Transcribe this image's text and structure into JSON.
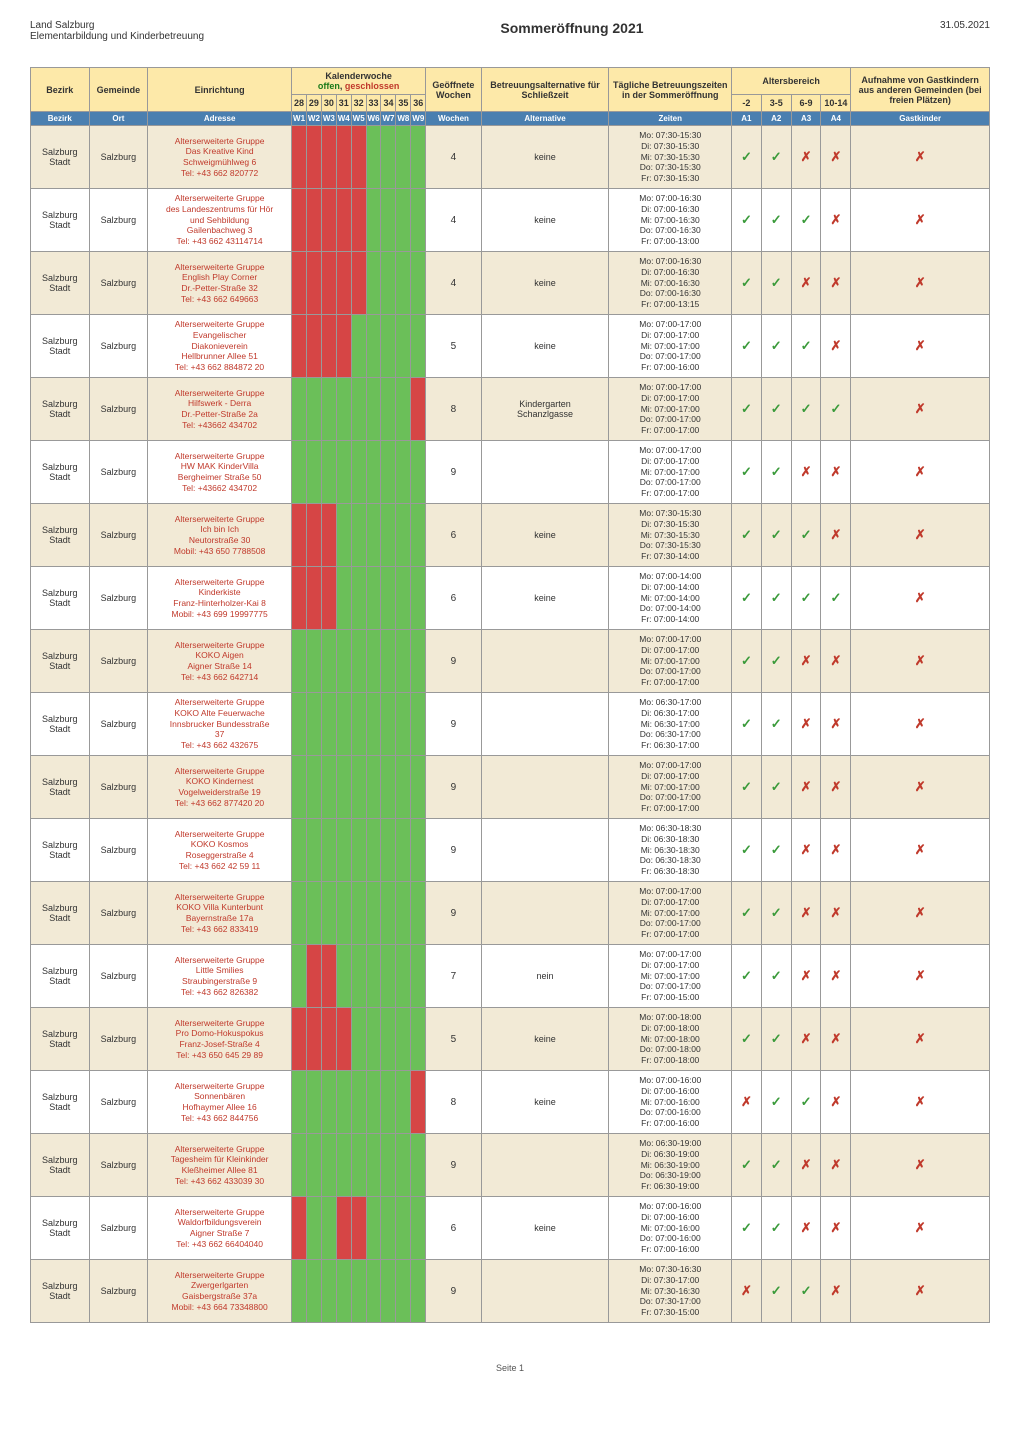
{
  "page": {
    "org_line1": "Land Salzburg",
    "org_line2": "Elementarbildung und Kinderbetreuung",
    "title": "Sommeröffnung 2021",
    "date": "31.05.2021",
    "footer": "Seite 1"
  },
  "colors": {
    "header_bg_top": "#fde9a9",
    "header_bg_sub": "#4a7fb0",
    "header_fg_sub": "#ffffff",
    "zebra_odd": "#f2ead6",
    "zebra_even": "#ffffff",
    "kw_open": "#6bbf59",
    "kw_closed": "#d64545",
    "check": "#3a9a3a",
    "cross": "#c0392b",
    "text_red": "#c0392b"
  },
  "header": {
    "bezirk": "Bezirk",
    "gemeinde": "Gemeinde",
    "einrichtung": "Einrichtung",
    "kalenderwoche": "Kalenderwoche",
    "kw_offen": "offen",
    "kw_sep": ", ",
    "kw_geschlossen": "geschlossen",
    "kw_nums": [
      "28",
      "29",
      "30",
      "31",
      "32",
      "33",
      "34",
      "35",
      "36"
    ],
    "kw_labels": [
      "W1",
      "W2",
      "W3",
      "W4",
      "W5",
      "W6",
      "W7",
      "W8",
      "W9"
    ],
    "geoeffnete_wochen": "Geöffnete Wochen",
    "wochen": "Wochen",
    "betreuungsalternative": "Betreuungsalternative für Schließzeit",
    "alternative": "Alternative",
    "taegliche": "Tägliche Betreuungszeiten in der Sommeröffnung",
    "zeiten": "Zeiten",
    "altersbereich": "Altersbereich",
    "ab_labels": [
      "-2",
      "3-5",
      "6-9",
      "10-14"
    ],
    "ab_codes": [
      "A1",
      "A2",
      "A3",
      "A4"
    ],
    "aufnahme": "Aufnahme von Gastkindern aus anderen Gemeinden (bei freien Plätzen)",
    "gastkinder": "Gastkinder",
    "ort": "Ort",
    "adresse": "Adresse"
  },
  "rows": [
    {
      "bezirk": "Salzburg Stadt",
      "gemeinde": "Salzburg",
      "adresse": "Alterserweiterte Gruppe\nDas Kreative Kind\nSchweigmühlweg 6\nTel: +43 662 820772",
      "kw": [
        0,
        0,
        0,
        0,
        0,
        1,
        1,
        1,
        1
      ],
      "wochen": "4",
      "alt": "keine",
      "zeiten": "Mo: 07:30-15:30\nDi: 07:30-15:30\nMi: 07:30-15:30\nDo: 07:30-15:30\nFr: 07:30-15:30",
      "ab": [
        "✓",
        "✓",
        "✗",
        "✗"
      ],
      "gast": "✗"
    },
    {
      "bezirk": "Salzburg Stadt",
      "gemeinde": "Salzburg",
      "adresse": "Alterserweiterte Gruppe\ndes Landeszentrums für Hör\nund Sehbildung\nGailenbachweg 3\nTel: +43 662 43114714",
      "kw": [
        0,
        0,
        0,
        0,
        0,
        1,
        1,
        1,
        1
      ],
      "wochen": "4",
      "alt": "keine",
      "zeiten": "Mo: 07:00-16:30\nDi: 07:00-16:30\nMi: 07:00-16:30\nDo: 07:00-16:30\nFr: 07:00-13:00",
      "ab": [
        "✓",
        "✓",
        "✓",
        "✗"
      ],
      "gast": "✗"
    },
    {
      "bezirk": "Salzburg Stadt",
      "gemeinde": "Salzburg",
      "adresse": "Alterserweiterte Gruppe\nEnglish Play Corner\nDr.-Petter-Straße 32\nTel: +43 662 649663",
      "kw": [
        0,
        0,
        0,
        0,
        0,
        1,
        1,
        1,
        1
      ],
      "wochen": "4",
      "alt": "keine",
      "zeiten": "Mo: 07:00-16:30\nDi: 07:00-16:30\nMi: 07:00-16:30\nDo: 07:00-16:30\nFr: 07:00-13:15",
      "ab": [
        "✓",
        "✓",
        "✗",
        "✗"
      ],
      "gast": "✗"
    },
    {
      "bezirk": "Salzburg Stadt",
      "gemeinde": "Salzburg",
      "adresse": "Alterserweiterte Gruppe\nEvangelischer\nDiakonieverein\nHellbrunner Allee 51\nTel: +43 662 884872 20",
      "kw": [
        0,
        0,
        0,
        0,
        1,
        1,
        1,
        1,
        1
      ],
      "wochen": "5",
      "alt": "keine",
      "zeiten": "Mo: 07:00-17:00\nDi: 07:00-17:00\nMi: 07:00-17:00\nDo: 07:00-17:00\nFr: 07:00-16:00",
      "ab": [
        "✓",
        "✓",
        "✓",
        "✗"
      ],
      "gast": "✗"
    },
    {
      "bezirk": "Salzburg Stadt",
      "gemeinde": "Salzburg",
      "adresse": "Alterserweiterte Gruppe\nHilfswerk - Derra\nDr.-Petter-Straße 2a\nTel: +43662 434702",
      "kw": [
        1,
        1,
        1,
        1,
        1,
        1,
        1,
        1,
        0
      ],
      "wochen": "8",
      "alt": "Kindergarten\nSchanzlgasse",
      "zeiten": "Mo: 07:00-17:00\nDi: 07:00-17:00\nMi: 07:00-17:00\nDo: 07:00-17:00\nFr: 07:00-17:00",
      "ab": [
        "✓",
        "✓",
        "✓",
        "✓"
      ],
      "gast": "✗"
    },
    {
      "bezirk": "Salzburg Stadt",
      "gemeinde": "Salzburg",
      "adresse": "Alterserweiterte Gruppe\nHW MAK KinderVilla\nBergheimer Straße 50\nTel: +43662 434702",
      "kw": [
        1,
        1,
        1,
        1,
        1,
        1,
        1,
        1,
        1
      ],
      "wochen": "9",
      "alt": "",
      "zeiten": "Mo: 07:00-17:00\nDi: 07:00-17:00\nMi: 07:00-17:00\nDo: 07:00-17:00\nFr: 07:00-17:00",
      "ab": [
        "✓",
        "✓",
        "✗",
        "✗"
      ],
      "gast": "✗"
    },
    {
      "bezirk": "Salzburg Stadt",
      "gemeinde": "Salzburg",
      "adresse": "Alterserweiterte Gruppe\nIch bin Ich\nNeutorstraße 30\nMobil: +43 650 7788508",
      "kw": [
        0,
        0,
        0,
        1,
        1,
        1,
        1,
        1,
        1
      ],
      "wochen": "6",
      "alt": "keine",
      "zeiten": "Mo: 07:30-15:30\nDi: 07:30-15:30\nMi: 07:30-15:30\nDo: 07:30-15:30\nFr: 07:30-14:00",
      "ab": [
        "✓",
        "✓",
        "✓",
        "✗"
      ],
      "gast": "✗"
    },
    {
      "bezirk": "Salzburg Stadt",
      "gemeinde": "Salzburg",
      "adresse": "Alterserweiterte Gruppe\nKinderkiste\nFranz-Hinterholzer-Kai 8\nMobil: +43 699 19997775",
      "kw": [
        0,
        0,
        0,
        1,
        1,
        1,
        1,
        1,
        1
      ],
      "wochen": "6",
      "alt": "keine",
      "zeiten": "Mo: 07:00-14:00\nDi: 07:00-14:00\nMi: 07:00-14:00\nDo: 07:00-14:00\nFr: 07:00-14:00",
      "ab": [
        "✓",
        "✓",
        "✓",
        "✓"
      ],
      "gast": "✗"
    },
    {
      "bezirk": "Salzburg Stadt",
      "gemeinde": "Salzburg",
      "adresse": "Alterserweiterte Gruppe\nKOKO Aigen\nAigner Straße 14\nTel: +43 662 642714",
      "kw": [
        1,
        1,
        1,
        1,
        1,
        1,
        1,
        1,
        1
      ],
      "wochen": "9",
      "alt": "",
      "zeiten": "Mo: 07:00-17:00\nDi: 07:00-17:00\nMi: 07:00-17:00\nDo: 07:00-17:00\nFr: 07:00-17:00",
      "ab": [
        "✓",
        "✓",
        "✗",
        "✗"
      ],
      "gast": "✗"
    },
    {
      "bezirk": "Salzburg Stadt",
      "gemeinde": "Salzburg",
      "adresse": "Alterserweiterte Gruppe\nKOKO Alte Feuerwache\nInnsbrucker Bundesstraße\n37\nTel: +43 662 432675",
      "kw": [
        1,
        1,
        1,
        1,
        1,
        1,
        1,
        1,
        1
      ],
      "wochen": "9",
      "alt": "",
      "zeiten": "Mo: 06:30-17:00\nDi: 06:30-17:00\nMi: 06:30-17:00\nDo: 06:30-17:00\nFr: 06:30-17:00",
      "ab": [
        "✓",
        "✓",
        "✗",
        "✗"
      ],
      "gast": "✗"
    },
    {
      "bezirk": "Salzburg Stadt",
      "gemeinde": "Salzburg",
      "adresse": "Alterserweiterte Gruppe\nKOKO Kindernest\nVogelweiderstraße 19\nTel: +43 662 877420 20",
      "kw": [
        1,
        1,
        1,
        1,
        1,
        1,
        1,
        1,
        1
      ],
      "wochen": "9",
      "alt": "",
      "zeiten": "Mo: 07:00-17:00\nDi: 07:00-17:00\nMi: 07:00-17:00\nDo: 07:00-17:00\nFr: 07:00-17:00",
      "ab": [
        "✓",
        "✓",
        "✗",
        "✗"
      ],
      "gast": "✗"
    },
    {
      "bezirk": "Salzburg Stadt",
      "gemeinde": "Salzburg",
      "adresse": "Alterserweiterte Gruppe\nKOKO Kosmos\nRoseggerstraße 4\nTel: +43 662 42 59 11",
      "kw": [
        1,
        1,
        1,
        1,
        1,
        1,
        1,
        1,
        1
      ],
      "wochen": "9",
      "alt": "",
      "zeiten": "Mo: 06:30-18:30\nDi: 06:30-18:30\nMi: 06:30-18:30\nDo: 06:30-18:30\nFr: 06:30-18:30",
      "ab": [
        "✓",
        "✓",
        "✗",
        "✗"
      ],
      "gast": "✗"
    },
    {
      "bezirk": "Salzburg Stadt",
      "gemeinde": "Salzburg",
      "adresse": "Alterserweiterte Gruppe\nKOKO Villa Kunterbunt\nBayernstraße 17a\nTel: +43 662 833419",
      "kw": [
        1,
        1,
        1,
        1,
        1,
        1,
        1,
        1,
        1
      ],
      "wochen": "9",
      "alt": "",
      "zeiten": "Mo: 07:00-17:00\nDi: 07:00-17:00\nMi: 07:00-17:00\nDo: 07:00-17:00\nFr: 07:00-17:00",
      "ab": [
        "✓",
        "✓",
        "✗",
        "✗"
      ],
      "gast": "✗"
    },
    {
      "bezirk": "Salzburg Stadt",
      "gemeinde": "Salzburg",
      "adresse": "Alterserweiterte Gruppe\nLittle Smilies\nStraubingerstraße 9\nTel: +43 662 826382",
      "kw": [
        1,
        0,
        0,
        1,
        1,
        1,
        1,
        1,
        1
      ],
      "wochen": "7",
      "alt": "nein",
      "zeiten": "Mo: 07:00-17:00\nDi: 07:00-17:00\nMi: 07:00-17:00\nDo: 07:00-17:00\nFr: 07:00-15:00",
      "ab": [
        "✓",
        "✓",
        "✗",
        "✗"
      ],
      "gast": "✗"
    },
    {
      "bezirk": "Salzburg Stadt",
      "gemeinde": "Salzburg",
      "adresse": "Alterserweiterte Gruppe\nPro Domo-Hokuspokus\nFranz-Josef-Straße 4\nTel: +43 650 645 29 89",
      "kw": [
        0,
        0,
        0,
        0,
        1,
        1,
        1,
        1,
        1
      ],
      "wochen": "5",
      "alt": "keine",
      "zeiten": "Mo: 07:00-18:00\nDi: 07:00-18:00\nMi: 07:00-18:00\nDo: 07:00-18:00\nFr: 07:00-18:00",
      "ab": [
        "✓",
        "✓",
        "✗",
        "✗"
      ],
      "gast": "✗"
    },
    {
      "bezirk": "Salzburg Stadt",
      "gemeinde": "Salzburg",
      "adresse": "Alterserweiterte Gruppe\nSonnenbären\nHofhaymer Allee 16\nTel: +43 662 844756",
      "kw": [
        1,
        1,
        1,
        1,
        1,
        1,
        1,
        1,
        0
      ],
      "wochen": "8",
      "alt": "keine",
      "zeiten": "Mo: 07:00-16:00\nDi: 07:00-16:00\nMi: 07:00-16:00\nDo: 07:00-16:00\nFr: 07:00-16:00",
      "ab": [
        "✗",
        "✓",
        "✓",
        "✗"
      ],
      "gast": "✗"
    },
    {
      "bezirk": "Salzburg Stadt",
      "gemeinde": "Salzburg",
      "adresse": "Alterserweiterte Gruppe\nTagesheim für Kleinkinder\nKleßheimer Allee 81\nTel: +43 662 433039 30",
      "kw": [
        1,
        1,
        1,
        1,
        1,
        1,
        1,
        1,
        1
      ],
      "wochen": "9",
      "alt": "",
      "zeiten": "Mo: 06:30-19:00\nDi: 06:30-19:00\nMi: 06:30-19:00\nDo: 06:30-19:00\nFr: 06:30-19:00",
      "ab": [
        "✓",
        "✓",
        "✗",
        "✗"
      ],
      "gast": "✗"
    },
    {
      "bezirk": "Salzburg Stadt",
      "gemeinde": "Salzburg",
      "adresse": "Alterserweiterte Gruppe\nWaldorfbildungsverein\nAigner Straße 7\nTel: +43 662 66404040",
      "kw": [
        0,
        1,
        1,
        0,
        0,
        1,
        1,
        1,
        1
      ],
      "wochen": "6",
      "alt": "keine",
      "zeiten": "Mo: 07:00-16:00\nDi: 07:00-16:00\nMi: 07:00-16:00\nDo: 07:00-16:00\nFr: 07:00-16:00",
      "ab": [
        "✓",
        "✓",
        "✗",
        "✗"
      ],
      "gast": "✗"
    },
    {
      "bezirk": "Salzburg Stadt",
      "gemeinde": "Salzburg",
      "adresse": "Alterserweiterte Gruppe\nZwergerlgarten\nGaisbergstraße 37a\nMobil: +43 664 73348800",
      "kw": [
        1,
        1,
        1,
        1,
        1,
        1,
        1,
        1,
        1
      ],
      "wochen": "9",
      "alt": "",
      "zeiten": "Mo: 07:30-16:30\nDi: 07:30-17:00\nMi: 07:30-16:30\nDo: 07:30-17:00\nFr: 07:30-15:00",
      "ab": [
        "✗",
        "✓",
        "✓",
        "✗"
      ],
      "gast": "✗"
    }
  ]
}
